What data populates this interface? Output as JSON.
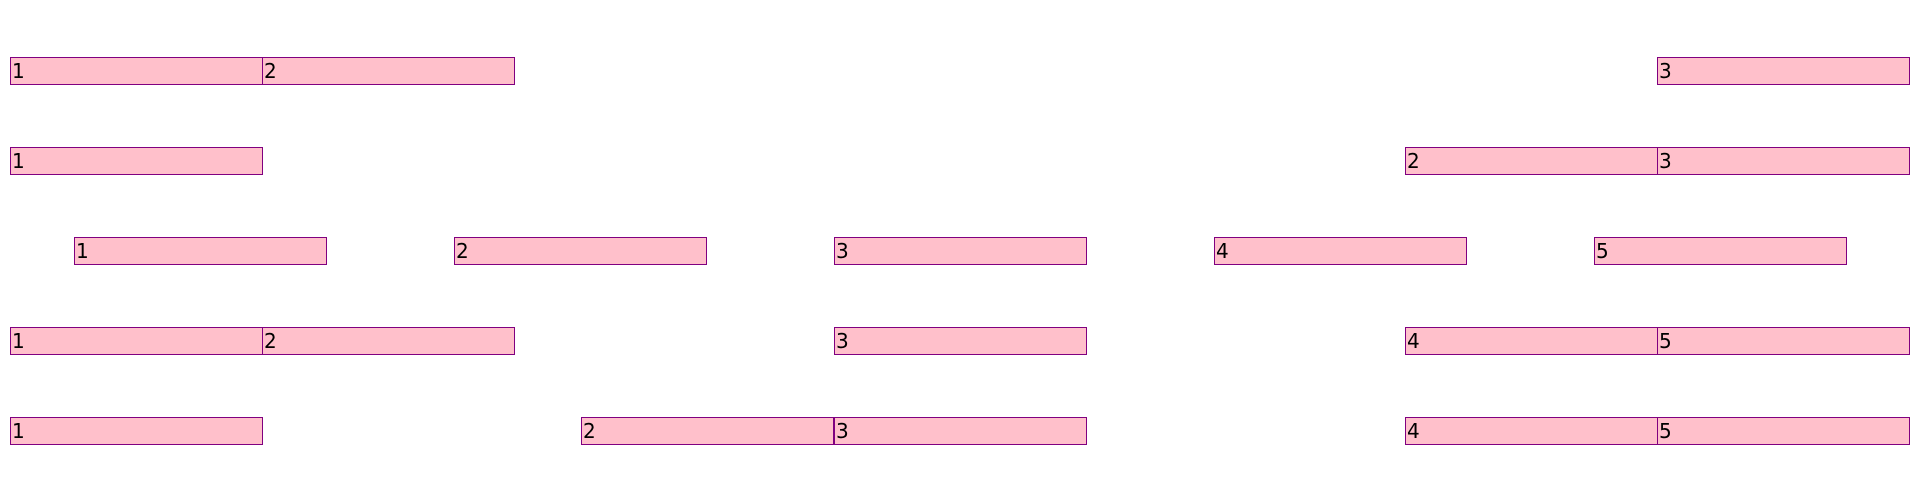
{
  "colors": {
    "box_fill": "#ffc0cb",
    "box_border": "#800080",
    "text": "#000000",
    "background": "#ffffff"
  },
  "rows": [
    {
      "items": [
        "1",
        "2",
        "3"
      ]
    },
    {
      "items": [
        "1",
        "2",
        "3"
      ]
    },
    {
      "items": [
        "1",
        "2",
        "3",
        "4",
        "5"
      ]
    },
    {
      "items": [
        "1",
        "2",
        "3",
        "4",
        "5"
      ]
    },
    {
      "items": [
        "1",
        "2",
        "3",
        "4",
        "5"
      ]
    }
  ]
}
